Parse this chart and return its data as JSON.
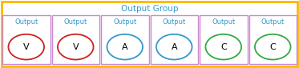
{
  "title": "Output Group",
  "title_color": "#3399CC",
  "title_fontsize": 7.5,
  "outer_border_color": "#FFB700",
  "outer_bg_color": "#FFFFFF",
  "box_border_color": "#CC88CC",
  "box_bg_color": "#FFFFFF",
  "label_text": "Output",
  "label_color": "#3399CC",
  "label_fontsize": 6,
  "items": [
    {
      "letter": "V",
      "oval_color": "#CC2222"
    },
    {
      "letter": "V",
      "oval_color": "#CC2222"
    },
    {
      "letter": "A",
      "oval_color": "#3399CC"
    },
    {
      "letter": "A",
      "oval_color": "#3399CC"
    },
    {
      "letter": "C",
      "oval_color": "#33AA44"
    },
    {
      "letter": "C",
      "oval_color": "#33AA44"
    }
  ],
  "letter_fontsize": 8,
  "letter_color": "#000000",
  "fig_width": 3.73,
  "fig_height": 0.85,
  "dpi": 100
}
